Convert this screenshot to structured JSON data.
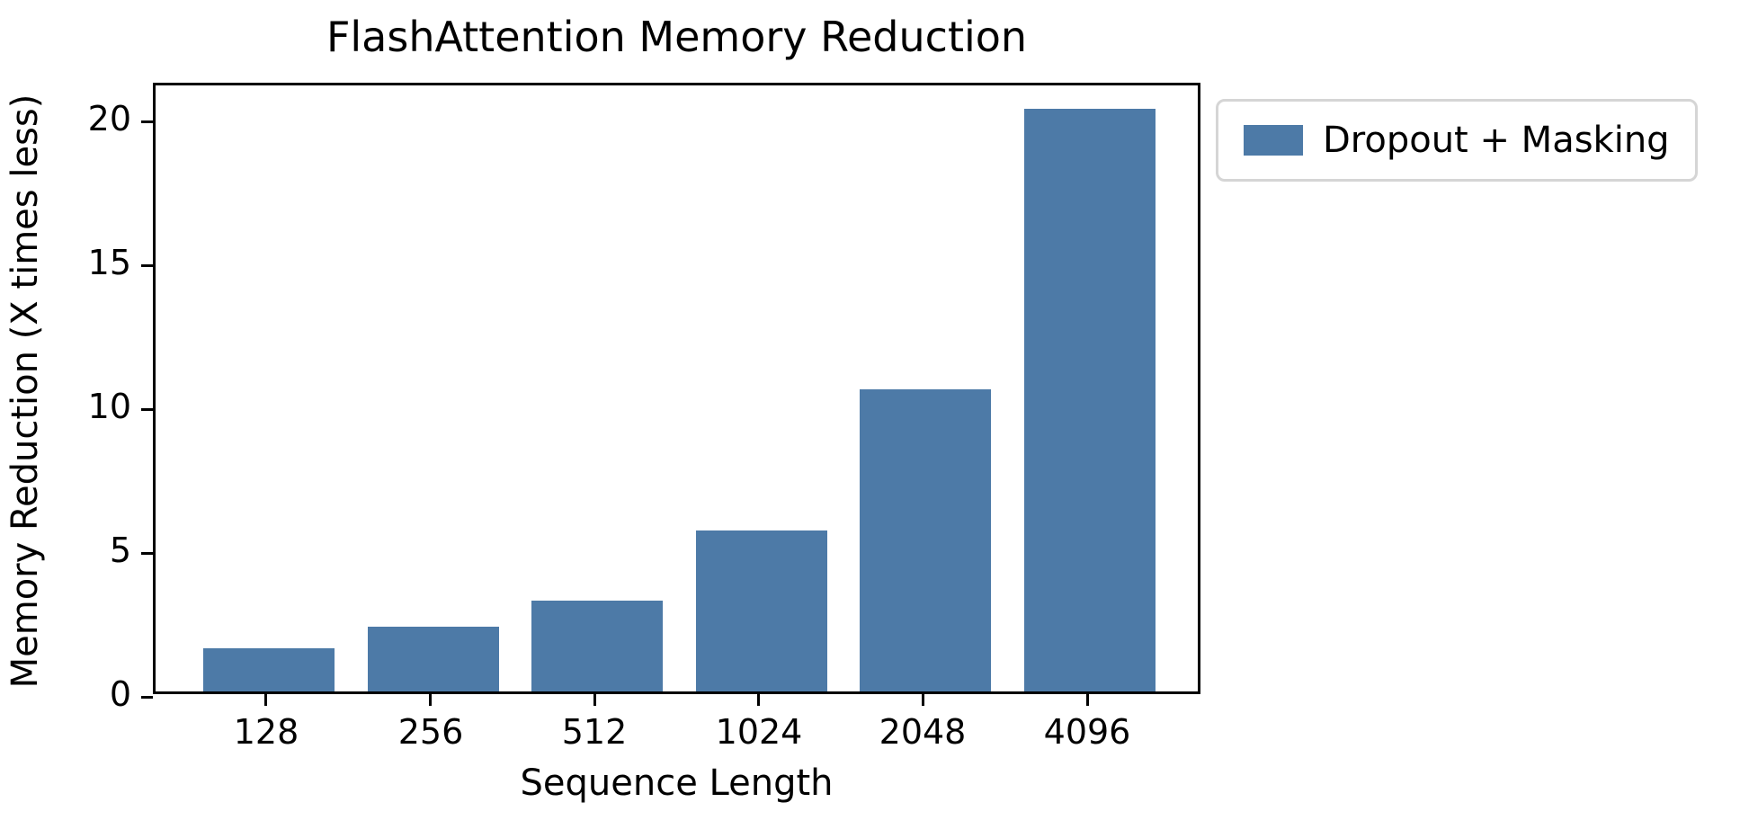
{
  "title": "FlashAttention Memory Reduction",
  "legend": {
    "label": "Dropout + Masking",
    "swatch_color": "#4d7aa7"
  },
  "colors": {
    "bar": "#4d7aa7",
    "axis": "#000000",
    "legend_border": "#d5d5d5",
    "background": "#ffffff"
  },
  "chart_data": {
    "type": "bar",
    "title": "FlashAttention Memory Reduction",
    "categories": [
      "128",
      "256",
      "512",
      "1024",
      "2048",
      "4096"
    ],
    "values": [
      1.5,
      2.25,
      3.15,
      5.6,
      10.5,
      20.25
    ],
    "series": [
      {
        "name": "Dropout + Masking",
        "values": [
          1.5,
          2.25,
          3.15,
          5.6,
          10.5,
          20.25
        ]
      }
    ],
    "xlabel": "Sequence Length",
    "ylabel": "Memory Reduction (X times less)",
    "ylim": [
      0,
      21.25
    ],
    "yticks": [
      0,
      5,
      10,
      15,
      20
    ],
    "grid": false,
    "legend_position": "outside-upper-right",
    "bar_color": "#4d7aa7",
    "bar_width_fraction": 0.8
  }
}
